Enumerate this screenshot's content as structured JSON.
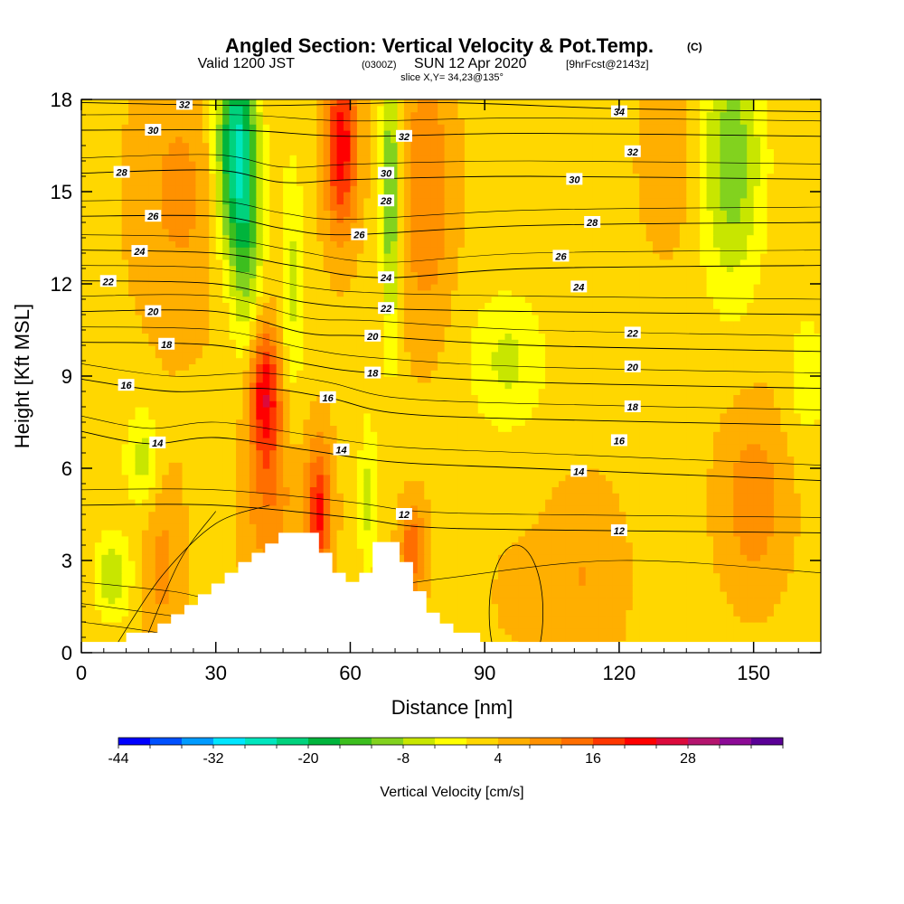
{
  "header": {
    "title": "Angled Section: Vertical Velocity & Pot.Temp.",
    "title_mark": "(C)",
    "valid_a": "Valid 1200 JST",
    "valid_b": "(0300Z)",
    "valid_c": "SUN 12 Apr 2020",
    "valid_d": "[9hrFcst@2143z]",
    "slice": "slice X,Y= 34,23@135°"
  },
  "chart_data": {
    "type": "heatmap",
    "xlabel": "Distance [nm]",
    "ylabel": "Height [Kft MSL]",
    "xlim": [
      0,
      165
    ],
    "ylim": [
      0,
      18
    ],
    "x_ticks": [
      "0",
      "30",
      "60",
      "90",
      "120",
      "150"
    ],
    "y_ticks": [
      "0",
      "3",
      "6",
      "9",
      "12",
      "15",
      "18"
    ],
    "x_tick_values": [
      0,
      30,
      60,
      90,
      120,
      150
    ],
    "y_tick_values": [
      0,
      3,
      6,
      9,
      12,
      15,
      18
    ],
    "colorbar": {
      "label": "Vertical Velocity [cm/s]",
      "tick_labels": [
        "-44",
        "-32",
        "-20",
        "-8",
        "4",
        "16",
        "28"
      ],
      "tick_values": [
        -44,
        -32,
        -20,
        -8,
        4,
        16,
        28
      ],
      "min": -44,
      "max": 40,
      "step": 4,
      "colors": [
        "#0000ff",
        "#0050ff",
        "#009bff",
        "#00e6ff",
        "#00e6be",
        "#00d27d",
        "#00b43c",
        "#3cbe1e",
        "#82d21e",
        "#c8e600",
        "#ffff00",
        "#ffd700",
        "#ffaf00",
        "#ff9100",
        "#ff6e00",
        "#ff3700",
        "#ff0000",
        "#dc0a3c",
        "#b4146e",
        "#8c0a96",
        "#5a0096"
      ]
    },
    "terrain": {
      "x": [
        10,
        12,
        12,
        17,
        17,
        20,
        20,
        23,
        23,
        26,
        26,
        29,
        29,
        32,
        32,
        35,
        35,
        38,
        38,
        41,
        41,
        44,
        44,
        53,
        53,
        56,
        56,
        59,
        59,
        62,
        62,
        65,
        65,
        71,
        71,
        74,
        74,
        77,
        77,
        80,
        80,
        83,
        83,
        86,
        86,
        89
      ],
      "y": [
        0.65,
        0.65,
        0.65,
        0.65,
        0.95,
        0.95,
        1.25,
        1.25,
        1.55,
        1.55,
        1.9,
        1.9,
        2.25,
        2.25,
        2.6,
        2.6,
        2.95,
        2.95,
        3.25,
        3.25,
        3.55,
        3.55,
        3.9,
        3.9,
        3.25,
        3.25,
        2.6,
        2.6,
        2.3,
        2.3,
        2.6,
        2.6,
        3.6,
        3.6,
        2.95,
        2.95,
        2.0,
        2.0,
        1.3,
        1.3,
        0.95,
        0.95,
        0.65,
        0.65,
        0.65,
        0.65
      ]
    },
    "isentropes": [
      {
        "label": "32",
        "label_x": 23,
        "pts": [
          [
            0,
            17.9
          ],
          [
            40,
            17.8
          ],
          [
            80,
            17.9
          ],
          [
            120,
            17.7
          ],
          [
            165,
            17.6
          ]
        ]
      },
      {
        "label": "30",
        "label_x": 16,
        "pts": [
          [
            0,
            17.0
          ],
          [
            35,
            17.0
          ],
          [
            60,
            16.8
          ],
          [
            100,
            16.9
          ],
          [
            165,
            16.8
          ]
        ]
      },
      {
        "label": "28",
        "label_x": 9,
        "pts": [
          [
            0,
            15.6
          ],
          [
            30,
            15.7
          ],
          [
            45,
            15.3
          ],
          [
            62,
            15.4
          ],
          [
            100,
            15.5
          ],
          [
            165,
            15.4
          ]
        ]
      },
      {
        "label": "26",
        "label_x": 16,
        "pts": [
          [
            0,
            14.2
          ],
          [
            30,
            14.2
          ],
          [
            45,
            13.8
          ],
          [
            60,
            13.6
          ],
          [
            100,
            13.9
          ],
          [
            165,
            14.0
          ]
        ]
      },
      {
        "label": "24",
        "label_x": 13,
        "pts": [
          [
            0,
            13.1
          ],
          [
            30,
            13.0
          ],
          [
            47,
            12.6
          ],
          [
            67,
            12.2
          ],
          [
            100,
            12.5
          ],
          [
            165,
            12.6
          ]
        ]
      },
      {
        "label": "22",
        "label_x": 6,
        "pts": [
          [
            0,
            12.1
          ],
          [
            30,
            12.0
          ],
          [
            50,
            11.4
          ],
          [
            67,
            11.2
          ],
          [
            100,
            11.1
          ],
          [
            165,
            11.0
          ]
        ]
      },
      {
        "label": "20",
        "label_x": 16,
        "pts": [
          [
            0,
            11.1
          ],
          [
            30,
            11.1
          ],
          [
            50,
            10.4
          ],
          [
            65,
            10.3
          ],
          [
            100,
            10.0
          ],
          [
            165,
            9.8
          ]
        ]
      },
      {
        "label": "18",
        "label_x": 19,
        "pts": [
          [
            0,
            10.1
          ],
          [
            30,
            10.0
          ],
          [
            50,
            9.4
          ],
          [
            65,
            9.1
          ],
          [
            100,
            8.8
          ],
          [
            165,
            8.6
          ]
        ]
      },
      {
        "label": "16",
        "label_x": 10,
        "pts": [
          [
            0,
            8.9
          ],
          [
            20,
            8.5
          ],
          [
            40,
            8.6
          ],
          [
            55,
            8.3
          ],
          [
            70,
            7.8
          ],
          [
            100,
            7.6
          ],
          [
            165,
            7.4
          ]
        ]
      },
      {
        "label": "14",
        "label_x": 17,
        "pts": [
          [
            0,
            7.2
          ],
          [
            15,
            6.8
          ],
          [
            30,
            7.0
          ],
          [
            50,
            6.6
          ],
          [
            70,
            6.2
          ],
          [
            100,
            6.0
          ],
          [
            165,
            5.6
          ]
        ]
      },
      {
        "label": "12",
        "label_x": 120,
        "pts": [
          [
            0,
            4.8
          ],
          [
            30,
            4.8
          ],
          [
            60,
            4.4
          ],
          [
            75,
            4.1
          ],
          [
            100,
            4.0
          ],
          [
            165,
            3.9
          ]
        ]
      }
    ],
    "side_labels": [
      {
        "label": "34",
        "x": 120,
        "y": 17.6
      },
      {
        "label": "32",
        "x": 72,
        "y": 16.8
      },
      {
        "label": "32",
        "x": 123,
        "y": 16.3
      },
      {
        "label": "30",
        "x": 68,
        "y": 15.6
      },
      {
        "label": "30",
        "x": 110,
        "y": 15.4
      },
      {
        "label": "28",
        "x": 68,
        "y": 14.7
      },
      {
        "label": "28",
        "x": 114,
        "y": 14.0
      },
      {
        "label": "26",
        "x": 62,
        "y": 13.6
      },
      {
        "label": "26",
        "x": 107,
        "y": 12.9
      },
      {
        "label": "24",
        "x": 68,
        "y": 12.2
      },
      {
        "label": "24",
        "x": 111,
        "y": 11.9
      },
      {
        "label": "22",
        "x": 68,
        "y": 11.2
      },
      {
        "label": "22",
        "x": 123,
        "y": 10.4
      },
      {
        "label": "20",
        "x": 65,
        "y": 10.3
      },
      {
        "label": "20",
        "x": 123,
        "y": 9.3
      },
      {
        "label": "18",
        "x": 65,
        "y": 9.1
      },
      {
        "label": "18",
        "x": 123,
        "y": 8.0
      },
      {
        "label": "16",
        "x": 55,
        "y": 8.3
      },
      {
        "label": "16",
        "x": 120,
        "y": 6.9
      },
      {
        "label": "14",
        "x": 58,
        "y": 6.6
      },
      {
        "label": "14",
        "x": 111,
        "y": 5.9
      },
      {
        "label": "12",
        "x": 72,
        "y": 4.5
      }
    ]
  }
}
